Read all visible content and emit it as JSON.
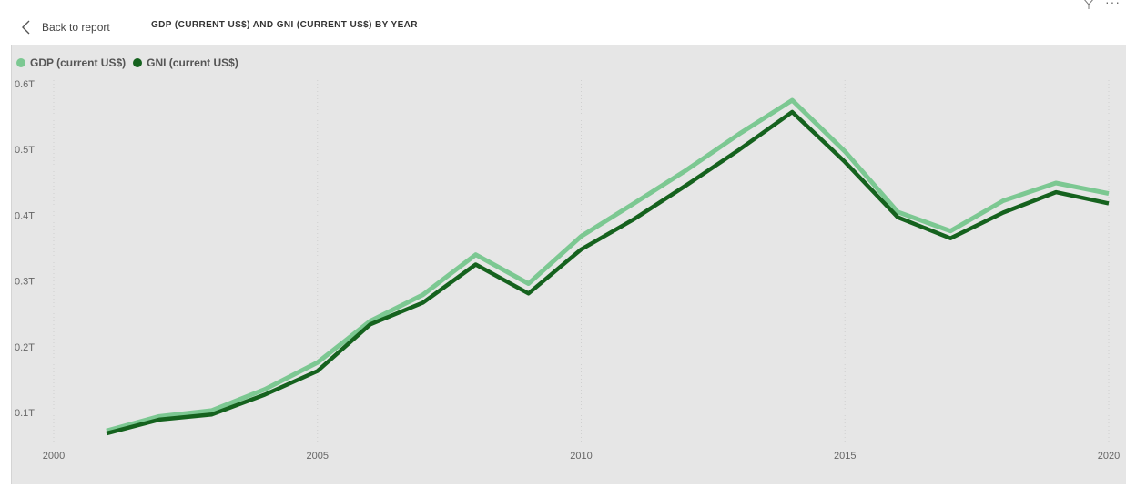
{
  "header": {
    "back_label": "Back to report",
    "title": "GDP (CURRENT US$) AND GNI (CURRENT US$) BY YEAR"
  },
  "colors": {
    "gdp": "#7cc892",
    "gni": "#15621e",
    "background": "#e6e6e6"
  },
  "chart_data": {
    "type": "line",
    "title": "GDP (CURRENT US$) AND GNI (CURRENT US$) BY YEAR",
    "xlabel": "",
    "ylabel": "",
    "x": [
      2001,
      2002,
      2003,
      2004,
      2005,
      2006,
      2007,
      2008,
      2009,
      2010,
      2011,
      2012,
      2013,
      2014,
      2015,
      2016,
      2017,
      2018,
      2019,
      2020
    ],
    "series": [
      {
        "name": "GDP (current US$)",
        "values": [
          0.072,
          0.094,
          0.103,
          0.135,
          0.176,
          0.239,
          0.279,
          0.34,
          0.296,
          0.368,
          0.418,
          0.469,
          0.524,
          0.575,
          0.497,
          0.405,
          0.376,
          0.422,
          0.449,
          0.433
        ]
      },
      {
        "name": "GNI (current US$)",
        "values": [
          0.068,
          0.089,
          0.097,
          0.127,
          0.163,
          0.234,
          0.267,
          0.325,
          0.281,
          0.348,
          0.394,
          0.446,
          0.5,
          0.557,
          0.481,
          0.397,
          0.365,
          0.404,
          0.435,
          0.418
        ]
      }
    ],
    "yticks": [
      "0.1T",
      "0.2T",
      "0.3T",
      "0.4T",
      "0.5T",
      "0.6T"
    ],
    "ytick_values": [
      0.1,
      0.2,
      0.3,
      0.4,
      0.5,
      0.6
    ],
    "xticks": [
      "2000",
      "2005",
      "2010",
      "2015",
      "2020"
    ],
    "xtick_values": [
      2000,
      2005,
      2010,
      2015,
      2020
    ],
    "xlim": [
      2000,
      2020
    ],
    "ylim": [
      0.05,
      0.6
    ],
    "grid": true,
    "legend_position": "top-left"
  }
}
